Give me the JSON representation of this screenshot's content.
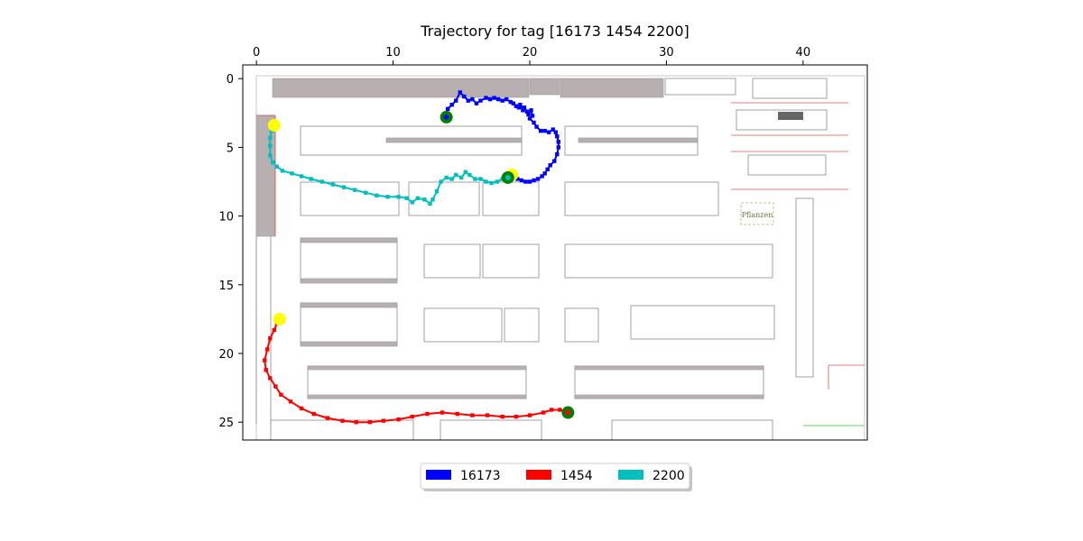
{
  "chart_data": {
    "type": "scatter",
    "title": "Trajectory for tag [16173  1454  2200]",
    "xlim": [
      -1,
      44.7
    ],
    "ylim": [
      26.3,
      -1
    ],
    "x_ticks": [
      0,
      10,
      20,
      30,
      40
    ],
    "y_ticks": [
      0,
      5,
      10,
      15,
      20,
      25
    ],
    "x_axis_position": "top",
    "y_axis_inverted": true,
    "background": "warehouse floor plan image",
    "floorplan_label": "Pflanzen",
    "legend_position": "bottom-center",
    "series": [
      {
        "name": "16173",
        "color": "#0000ff",
        "points": [
          [
            13.9,
            2.6
          ],
          [
            14.0,
            2.2
          ],
          [
            14.3,
            1.9
          ],
          [
            14.6,
            1.6
          ],
          [
            14.9,
            1.0
          ],
          [
            15.2,
            1.3
          ],
          [
            15.5,
            1.6
          ],
          [
            15.8,
            1.5
          ],
          [
            16.1,
            1.8
          ],
          [
            16.4,
            1.6
          ],
          [
            16.8,
            1.4
          ],
          [
            17.1,
            1.5
          ],
          [
            17.4,
            1.4
          ],
          [
            17.7,
            1.5
          ],
          [
            18.0,
            1.6
          ],
          [
            18.3,
            1.5
          ],
          [
            18.6,
            1.7
          ],
          [
            18.8,
            1.8
          ],
          [
            19.0,
            2.0
          ],
          [
            19.2,
            2.1
          ],
          [
            19.3,
            1.9
          ],
          [
            19.5,
            2.3
          ],
          [
            19.6,
            2.1
          ],
          [
            19.8,
            2.4
          ],
          [
            19.9,
            2.6
          ],
          [
            20.1,
            2.3
          ],
          [
            20.2,
            2.7
          ],
          [
            20.0,
            2.9
          ],
          [
            20.3,
            3.2
          ],
          [
            20.5,
            3.5
          ],
          [
            20.8,
            3.8
          ],
          [
            21.1,
            3.8
          ],
          [
            21.4,
            3.9
          ],
          [
            21.7,
            3.7
          ],
          [
            21.9,
            3.9
          ],
          [
            22.0,
            4.2
          ],
          [
            22.1,
            4.6
          ],
          [
            22.1,
            5.0
          ],
          [
            22.0,
            5.5
          ],
          [
            21.8,
            6.0
          ],
          [
            21.5,
            6.3
          ],
          [
            21.3,
            6.6
          ],
          [
            21.1,
            6.9
          ],
          [
            20.9,
            7.1
          ],
          [
            20.6,
            7.3
          ],
          [
            20.3,
            7.4
          ],
          [
            20.0,
            7.5
          ],
          [
            19.7,
            7.5
          ],
          [
            19.4,
            7.4
          ],
          [
            19.1,
            7.3
          ],
          [
            18.8,
            7.2
          ]
        ],
        "start": [
          13.9,
          2.8
        ],
        "end": [
          18.7,
          7.0
        ]
      },
      {
        "name": "1454",
        "color": "#ff0000",
        "points": [
          [
            1.7,
            17.5
          ],
          [
            1.5,
            17.8
          ],
          [
            1.3,
            18.3
          ],
          [
            1.0,
            18.9
          ],
          [
            0.8,
            19.7
          ],
          [
            0.6,
            20.5
          ],
          [
            0.7,
            21.2
          ],
          [
            1.0,
            21.8
          ],
          [
            1.4,
            22.4
          ],
          [
            1.8,
            23.0
          ],
          [
            2.5,
            23.5
          ],
          [
            3.3,
            24.0
          ],
          [
            4.2,
            24.4
          ],
          [
            5.2,
            24.7
          ],
          [
            6.3,
            24.9
          ],
          [
            7.3,
            25.0
          ],
          [
            8.3,
            25.0
          ],
          [
            9.3,
            24.9
          ],
          [
            10.4,
            24.8
          ],
          [
            11.4,
            24.6
          ],
          [
            12.5,
            24.4
          ],
          [
            13.6,
            24.3
          ],
          [
            14.7,
            24.4
          ],
          [
            15.8,
            24.5
          ],
          [
            16.9,
            24.5
          ],
          [
            18.0,
            24.6
          ],
          [
            19.0,
            24.6
          ],
          [
            20.0,
            24.5
          ],
          [
            21.0,
            24.3
          ],
          [
            21.6,
            24.1
          ],
          [
            22.2,
            24.1
          ],
          [
            22.7,
            24.2
          ]
        ],
        "start": [
          22.8,
          24.3
        ],
        "end": [
          1.7,
          17.5
        ]
      },
      {
        "name": "2200",
        "color": "#00bfbf",
        "points": [
          [
            1.2,
            3.3
          ],
          [
            1.1,
            3.8
          ],
          [
            1.0,
            4.3
          ],
          [
            1.0,
            4.9
          ],
          [
            1.0,
            5.6
          ],
          [
            1.2,
            6.1
          ],
          [
            1.5,
            6.4
          ],
          [
            1.9,
            6.7
          ],
          [
            2.6,
            6.9
          ],
          [
            3.3,
            7.1
          ],
          [
            4.0,
            7.3
          ],
          [
            4.8,
            7.5
          ],
          [
            5.6,
            7.7
          ],
          [
            6.4,
            7.9
          ],
          [
            7.2,
            8.1
          ],
          [
            8.0,
            8.3
          ],
          [
            8.8,
            8.5
          ],
          [
            9.6,
            8.6
          ],
          [
            10.4,
            8.6
          ],
          [
            11.0,
            8.7
          ],
          [
            11.4,
            9.0
          ],
          [
            11.8,
            8.7
          ],
          [
            12.3,
            8.8
          ],
          [
            12.7,
            9.1
          ],
          [
            12.9,
            8.8
          ],
          [
            13.2,
            8.2
          ],
          [
            13.5,
            7.5
          ],
          [
            13.9,
            7.2
          ],
          [
            14.3,
            7.3
          ],
          [
            14.6,
            7.0
          ],
          [
            15.0,
            7.2
          ],
          [
            15.3,
            6.8
          ],
          [
            15.6,
            7.0
          ],
          [
            16.0,
            7.3
          ],
          [
            16.4,
            7.3
          ],
          [
            16.8,
            7.5
          ],
          [
            17.2,
            7.6
          ],
          [
            17.6,
            7.5
          ],
          [
            18.0,
            7.3
          ],
          [
            18.3,
            7.2
          ]
        ],
        "start": [
          18.4,
          7.2
        ],
        "end": [
          1.3,
          3.4
        ]
      }
    ],
    "start_marker_color": "#008000",
    "end_marker_color": "#ffff00"
  }
}
